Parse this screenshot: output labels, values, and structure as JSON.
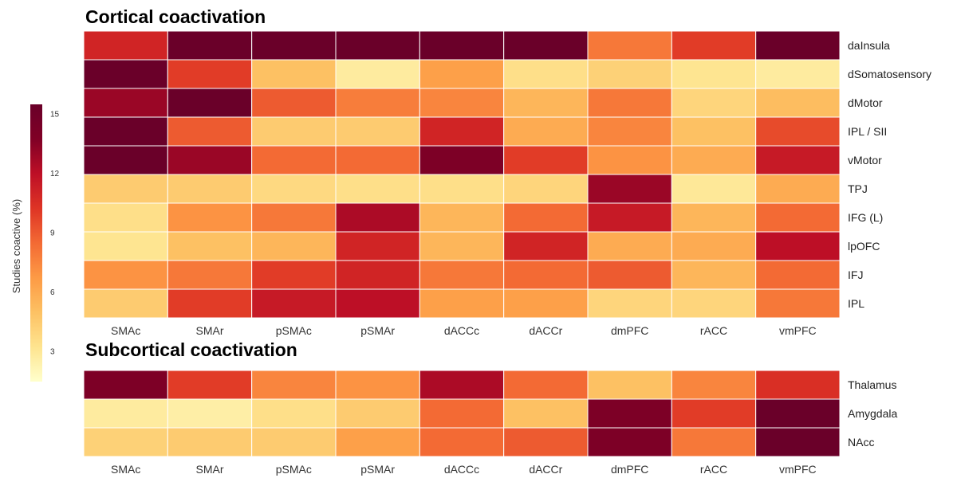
{
  "chart_data": [
    {
      "type": "heatmap",
      "title": "Cortical coactivation",
      "columns": [
        "SMAc",
        "SMAr",
        "pSMAc",
        "pSMAr",
        "dACCc",
        "dACCr",
        "dmPFC",
        "rACC",
        "vmPFC"
      ],
      "rows": [
        "daInsula",
        "dSomatosensory",
        "dMotor",
        "IPL / SII",
        "vMotor",
        "TPJ",
        "IFG (L)",
        "lpOFC",
        "IFJ",
        "IPL"
      ],
      "values": [
        [
          11.0,
          15.5,
          15.5,
          15.5,
          15.5,
          15.5,
          8.0,
          10.0,
          15.5
        ],
        [
          15.5,
          10.0,
          5.0,
          2.8,
          6.5,
          3.5,
          4.2,
          3.2,
          2.8
        ],
        [
          13.0,
          15.5,
          9.0,
          7.8,
          7.5,
          5.5,
          8.0,
          4.0,
          5.2
        ],
        [
          15.5,
          9.0,
          4.5,
          4.5,
          11.0,
          6.0,
          7.5,
          5.0,
          9.5
        ],
        [
          15.5,
          13.0,
          8.5,
          8.5,
          14.0,
          10.0,
          7.0,
          6.0,
          11.5
        ],
        [
          4.5,
          4.5,
          3.8,
          3.5,
          3.5,
          4.0,
          13.0,
          3.0,
          6.0
        ],
        [
          3.5,
          7.0,
          8.0,
          12.5,
          5.5,
          8.5,
          11.5,
          5.5,
          8.5
        ],
        [
          3.2,
          5.0,
          5.5,
          11.0,
          5.5,
          11.0,
          6.0,
          6.0,
          12.0
        ],
        [
          7.0,
          8.0,
          10.0,
          11.0,
          8.0,
          8.5,
          9.0,
          5.5,
          8.5
        ],
        [
          4.5,
          10.0,
          11.5,
          12.0,
          6.5,
          6.5,
          4.0,
          4.0,
          8.0
        ]
      ]
    },
    {
      "type": "heatmap",
      "title": "Subcortical coactivation",
      "columns": [
        "SMAc",
        "SMAr",
        "pSMAc",
        "pSMAr",
        "dACCc",
        "dACCr",
        "dmPFC",
        "rACC",
        "vmPFC"
      ],
      "rows": [
        "Thalamus",
        "Amygdala",
        "NAcc"
      ],
      "values": [
        [
          14.0,
          10.0,
          7.5,
          7.0,
          12.5,
          8.5,
          5.0,
          7.5,
          10.5
        ],
        [
          2.8,
          2.6,
          3.5,
          4.5,
          8.5,
          5.0,
          14.0,
          10.0,
          15.5
        ],
        [
          4.2,
          4.5,
          4.5,
          6.5,
          8.5,
          9.0,
          14.0,
          8.0,
          15.5
        ]
      ]
    }
  ],
  "colorbar": {
    "label": "Studies coactive (%)",
    "min": 1.5,
    "max": 15.5,
    "ticks": [
      "15",
      "12",
      "9",
      "6",
      "3"
    ],
    "tick_values": [
      15,
      12,
      9,
      6,
      3
    ],
    "colors": [
      "#ffffcc",
      "#fee48f",
      "#fdc163",
      "#fd9a45",
      "#f36a34",
      "#de3425",
      "#bd0f26",
      "#800026",
      "#6a0029"
    ]
  }
}
